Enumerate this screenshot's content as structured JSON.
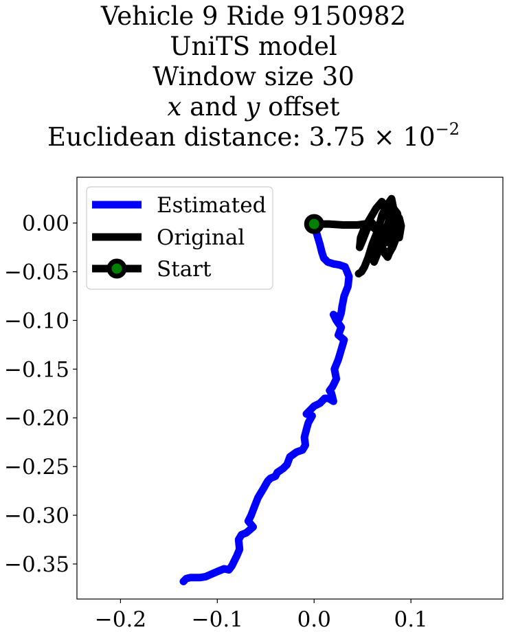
{
  "title": {
    "line1": "Vehicle 9 Ride 9150982",
    "line2": "UniTS model",
    "line3": "Window size 30",
    "line4_x": "x",
    "line4_and": " and ",
    "line4_y": "y",
    "line4_rest": " offset",
    "line5_prefix": "Euclidean distance: 3.75 × 10",
    "line5_exp": "−2"
  },
  "chart_data": {
    "type": "line",
    "xlim": [
      -0.245,
      0.195
    ],
    "ylim": [
      -0.386,
      0.047
    ],
    "xticks": [
      {
        "value": -0.2,
        "label": "−0.2"
      },
      {
        "value": -0.1,
        "label": "−0.1"
      },
      {
        "value": 0.0,
        "label": "0.0"
      },
      {
        "value": 0.1,
        "label": "0.1"
      }
    ],
    "yticks": [
      {
        "value": 0.0,
        "label": "0.00"
      },
      {
        "value": -0.05,
        "label": "−0.05"
      },
      {
        "value": -0.1,
        "label": "−0.10"
      },
      {
        "value": -0.15,
        "label": "−0.15"
      },
      {
        "value": -0.2,
        "label": "−0.20"
      },
      {
        "value": -0.25,
        "label": "−0.25"
      },
      {
        "value": -0.3,
        "label": "−0.30"
      },
      {
        "value": -0.35,
        "label": "−0.35"
      }
    ],
    "grid": false,
    "legend_position": "upper-left",
    "series": [
      {
        "name": "Estimated",
        "color": "#0000ff",
        "x": [
          0.0,
          0.003,
          0.006,
          0.008,
          0.01,
          0.014,
          0.02,
          0.026,
          0.032,
          0.036,
          0.035,
          0.031,
          0.029,
          0.028,
          0.026,
          0.02,
          0.023,
          0.028,
          0.025,
          0.031,
          0.028,
          0.025,
          0.021,
          0.023,
          0.019,
          0.016,
          0.018,
          0.02,
          0.015,
          0.011,
          0.008,
          0.006,
          0.0,
          -0.005,
          -0.008,
          -0.002,
          -0.006,
          -0.008,
          -0.01,
          -0.009,
          -0.012,
          -0.018,
          -0.025,
          -0.028,
          -0.032,
          -0.038,
          -0.04,
          -0.045,
          -0.048,
          -0.052,
          -0.058,
          -0.062,
          -0.065,
          -0.068,
          -0.063,
          -0.07,
          -0.075,
          -0.078,
          -0.077,
          -0.08,
          -0.085,
          -0.088,
          -0.093,
          -0.098,
          -0.105,
          -0.112,
          -0.118,
          -0.124,
          -0.128,
          -0.132,
          -0.135
        ],
        "y": [
          -0.001,
          -0.012,
          -0.022,
          -0.03,
          -0.036,
          -0.04,
          -0.042,
          -0.043,
          -0.045,
          -0.055,
          -0.065,
          -0.075,
          -0.085,
          -0.092,
          -0.098,
          -0.094,
          -0.1,
          -0.107,
          -0.115,
          -0.12,
          -0.13,
          -0.14,
          -0.15,
          -0.16,
          -0.168,
          -0.172,
          -0.175,
          -0.183,
          -0.18,
          -0.18,
          -0.183,
          -0.185,
          -0.188,
          -0.193,
          -0.196,
          -0.198,
          -0.205,
          -0.212,
          -0.22,
          -0.228,
          -0.233,
          -0.235,
          -0.24,
          -0.248,
          -0.252,
          -0.256,
          -0.26,
          -0.262,
          -0.265,
          -0.272,
          -0.282,
          -0.292,
          -0.3,
          -0.306,
          -0.312,
          -0.318,
          -0.32,
          -0.325,
          -0.335,
          -0.342,
          -0.352,
          -0.356,
          -0.355,
          -0.357,
          -0.36,
          -0.363,
          -0.364,
          -0.364,
          -0.364,
          -0.365,
          -0.368
        ]
      },
      {
        "name": "Original",
        "color": "#000000",
        "x": [
          0.0,
          0.015,
          0.03,
          0.045,
          0.052,
          0.06,
          0.066,
          0.07,
          0.075,
          0.08,
          0.083,
          0.08,
          0.075,
          0.07,
          0.068,
          0.072,
          0.078,
          0.082,
          0.085,
          0.088,
          0.09,
          0.088,
          0.085,
          0.08,
          0.076,
          0.072,
          0.068,
          0.065,
          0.062,
          0.058,
          0.054,
          0.05,
          0.047,
          0.048,
          0.052,
          0.058,
          0.064,
          0.07,
          0.075,
          0.08,
          0.085,
          0.088,
          0.086,
          0.082,
          0.078,
          0.074,
          0.07,
          0.066,
          0.062,
          0.06,
          0.064,
          0.068,
          0.072,
          0.076,
          0.08,
          0.084,
          0.087,
          0.085,
          0.081,
          0.077,
          0.072,
          0.068,
          0.064,
          0.06,
          0.056,
          0.052,
          0.049,
          0.046
        ],
        "y": [
          -0.001,
          -0.001,
          -0.002,
          -0.002,
          -0.001,
          -0.004,
          -0.008,
          0.008,
          0.018,
          0.025,
          0.01,
          -0.01,
          -0.02,
          -0.012,
          0.0,
          0.012,
          0.02,
          0.008,
          -0.005,
          -0.015,
          -0.003,
          0.005,
          -0.01,
          -0.025,
          -0.035,
          -0.03,
          -0.02,
          -0.01,
          -0.002,
          0.002,
          -0.008,
          -0.018,
          -0.025,
          -0.015,
          -0.005,
          0.005,
          0.015,
          0.022,
          0.01,
          -0.002,
          -0.012,
          0.0,
          0.01,
          0.015,
          0.005,
          -0.008,
          -0.02,
          -0.03,
          -0.04,
          -0.035,
          -0.025,
          -0.015,
          -0.005,
          -0.012,
          -0.02,
          -0.01,
          -0.002,
          -0.015,
          -0.025,
          -0.032,
          -0.028,
          -0.02,
          -0.012,
          -0.022,
          -0.035,
          -0.045,
          -0.05,
          -0.052
        ]
      },
      {
        "name": "Start",
        "color": "#000000",
        "marker_face": "#008000",
        "x": [
          0.0
        ],
        "y": [
          -0.001
        ]
      }
    ]
  }
}
